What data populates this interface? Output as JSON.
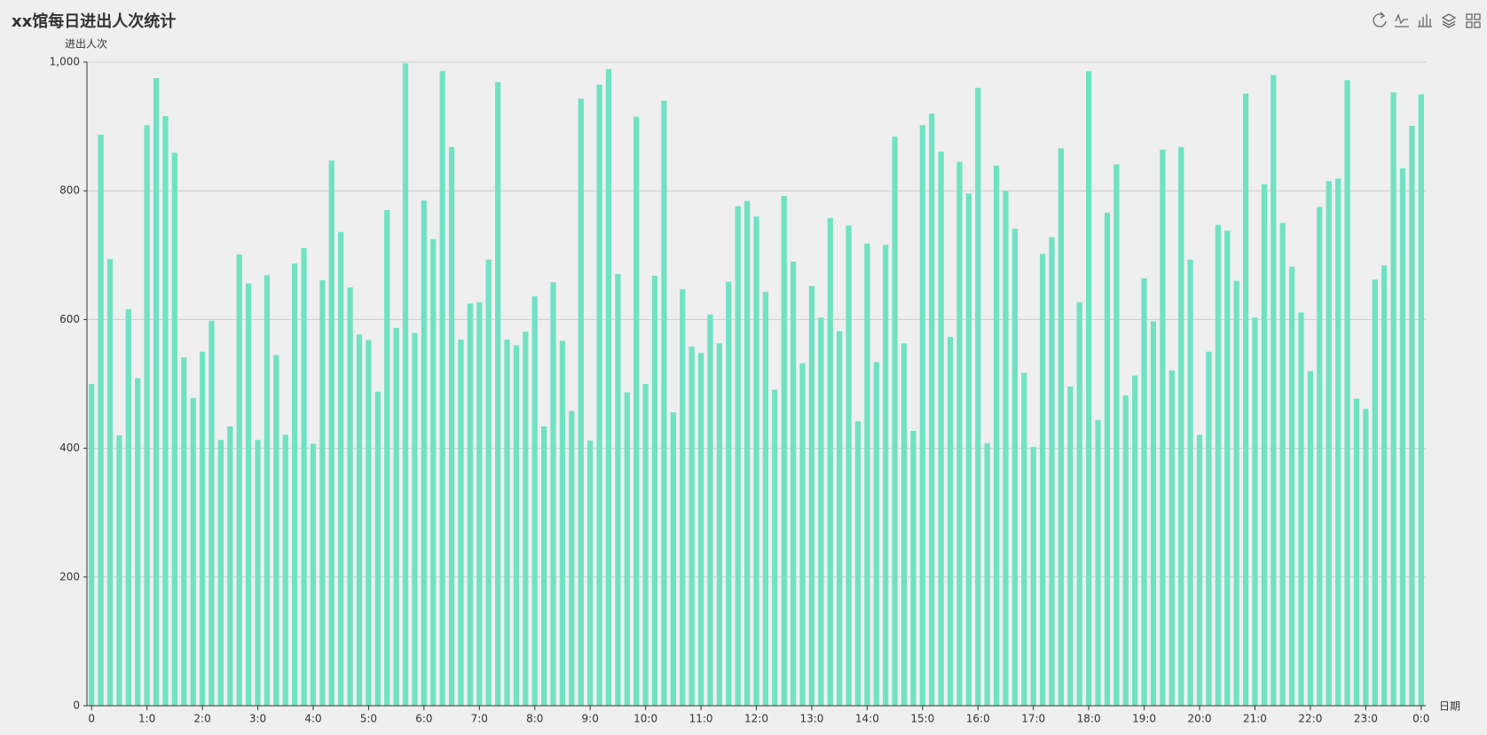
{
  "chart_data": {
    "type": "bar",
    "title": "xx馆每日进出人次统计",
    "y_label": "进出人次",
    "x_label": "日期",
    "categories": [
      "0",
      null,
      null,
      null,
      null,
      null,
      "1:0",
      null,
      null,
      null,
      null,
      null,
      "2:0",
      null,
      null,
      null,
      null,
      null,
      "3:0",
      null,
      null,
      null,
      null,
      null,
      "4:0",
      null,
      null,
      null,
      null,
      null,
      "5:0",
      null,
      null,
      null,
      null,
      null,
      "6:0",
      null,
      null,
      null,
      null,
      null,
      "7:0",
      null,
      null,
      null,
      null,
      null,
      "8:0",
      null,
      null,
      null,
      null,
      null,
      "9:0",
      null,
      null,
      null,
      null,
      null,
      "10:0",
      null,
      null,
      null,
      null,
      null,
      "11:0",
      null,
      null,
      null,
      null,
      null,
      "12:0",
      null,
      null,
      null,
      null,
      null,
      "13:0",
      null,
      null,
      null,
      null,
      null,
      "14:0",
      null,
      null,
      null,
      null,
      null,
      "15:0",
      null,
      null,
      null,
      null,
      null,
      "16:0",
      null,
      null,
      null,
      null,
      null,
      "17:0",
      null,
      null,
      null,
      null,
      null,
      "18:0",
      null,
      null,
      null,
      null,
      null,
      "19:0",
      null,
      null,
      null,
      null,
      null,
      "20:0",
      null,
      null,
      null,
      null,
      null,
      "21:0",
      null,
      null,
      null,
      null,
      null,
      "22:0",
      null,
      null,
      null,
      null,
      null,
      "23:0",
      null,
      null,
      null,
      null,
      null,
      "0:0"
    ],
    "values": [
      500,
      887,
      694,
      420,
      616,
      509,
      902,
      975,
      916,
      859,
      541,
      478,
      550,
      598,
      413,
      434,
      701,
      656,
      413,
      669,
      545,
      421,
      687,
      711,
      407,
      661,
      847,
      736,
      650,
      577,
      568,
      488,
      770,
      587,
      998,
      579,
      785,
      725,
      986,
      868,
      569,
      625,
      627,
      693,
      969,
      569,
      560,
      581,
      636,
      434,
      658,
      567,
      458,
      943,
      412,
      965,
      989,
      671,
      487,
      915,
      500,
      668,
      940,
      456,
      647,
      558,
      548,
      608,
      563,
      659,
      776,
      784,
      760,
      643,
      491,
      792,
      690,
      532,
      652,
      603,
      758,
      582,
      746,
      442,
      718,
      534,
      716,
      884,
      563,
      427,
      902,
      920,
      861,
      573,
      845,
      796,
      960,
      408,
      839,
      800,
      741,
      517,
      402,
      702,
      728,
      866,
      496,
      627,
      986,
      444,
      766,
      841,
      482,
      513,
      664,
      597,
      864,
      521,
      868,
      693,
      421,
      550,
      747,
      738,
      660,
      951,
      603,
      810,
      980,
      750,
      682,
      611,
      520,
      775,
      815,
      819,
      972,
      477,
      461,
      662,
      684,
      953,
      835,
      901,
      950
    ],
    "color": "#70e2c3",
    "ylim": [
      0,
      1000
    ],
    "yticks": [
      0,
      200,
      400,
      600,
      800,
      {
        "value": 1000,
        "label": "1,000"
      }
    ],
    "grid": true
  }
}
